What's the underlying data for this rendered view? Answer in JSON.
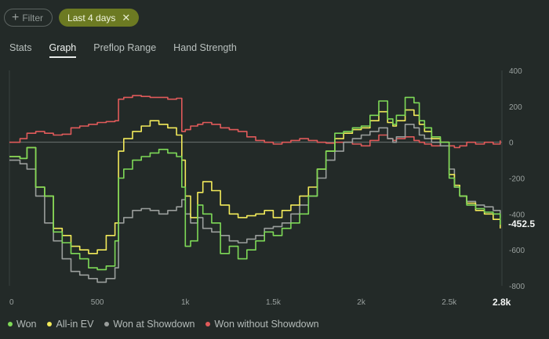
{
  "toolbar": {
    "filter_label": "Filter",
    "active_filter_label": "Last 4 days",
    "accent": "#6c7a22"
  },
  "tabs": [
    {
      "label": "Stats",
      "selected": false
    },
    {
      "label": "Graph",
      "selected": true
    },
    {
      "label": "Preflop Range",
      "selected": false
    },
    {
      "label": "Hand Strength",
      "selected": false
    }
  ],
  "chart_data": {
    "type": "line",
    "xlim": [
      0,
      2800
    ],
    "ylim": [
      -800,
      400
    ],
    "xticks": [
      {
        "value": 0,
        "label": "0"
      },
      {
        "value": 500,
        "label": "500"
      },
      {
        "value": 1000,
        "label": "1k"
      },
      {
        "value": 1500,
        "label": "1.5k"
      },
      {
        "value": 2000,
        "label": "2k"
      },
      {
        "value": 2500,
        "label": "2.5k"
      },
      {
        "value": 2800,
        "label": "2.8k"
      }
    ],
    "yticks": [
      400,
      200,
      0,
      -200,
      -400,
      -600,
      -800
    ],
    "end_value_label": "-452.5",
    "grid": false,
    "legend_position": "bottom-left",
    "series": [
      {
        "name": "Won",
        "color": "#7ed957",
        "x": [
          0,
          60,
          100,
          150,
          200,
          250,
          300,
          350,
          400,
          450,
          500,
          550,
          600,
          620,
          650,
          700,
          750,
          800,
          850,
          900,
          950,
          980,
          1000,
          1030,
          1070,
          1100,
          1150,
          1200,
          1250,
          1300,
          1350,
          1400,
          1450,
          1500,
          1550,
          1600,
          1650,
          1700,
          1750,
          1800,
          1850,
          1900,
          1950,
          2000,
          2050,
          2100,
          2150,
          2180,
          2200,
          2250,
          2300,
          2330,
          2360,
          2400,
          2450,
          2500,
          2530,
          2560,
          2600,
          2650,
          2700,
          2750,
          2790
        ],
        "y": [
          -80,
          -90,
          -30,
          -250,
          -300,
          -500,
          -560,
          -620,
          -650,
          -700,
          -710,
          -690,
          -550,
          -200,
          -150,
          -100,
          -80,
          -60,
          -40,
          -60,
          -80,
          -250,
          -580,
          -550,
          -350,
          -400,
          -450,
          -620,
          -580,
          -650,
          -600,
          -550,
          -500,
          -520,
          -480,
          -450,
          -400,
          -300,
          -150,
          -50,
          50,
          60,
          80,
          90,
          150,
          230,
          130,
          100,
          150,
          250,
          220,
          120,
          80,
          30,
          0,
          -200,
          -250,
          -300,
          -350,
          -370,
          -390,
          -400,
          -460
        ]
      },
      {
        "name": "All-in EV",
        "color": "#f2ea5a",
        "x": [
          0,
          60,
          100,
          150,
          200,
          250,
          300,
          350,
          400,
          450,
          500,
          550,
          600,
          620,
          650,
          700,
          750,
          800,
          850,
          900,
          950,
          980,
          1000,
          1030,
          1070,
          1100,
          1150,
          1200,
          1250,
          1300,
          1350,
          1400,
          1450,
          1500,
          1550,
          1600,
          1650,
          1700,
          1750,
          1800,
          1850,
          1900,
          1950,
          2000,
          2050,
          2100,
          2150,
          2180,
          2200,
          2250,
          2300,
          2330,
          2360,
          2400,
          2450,
          2500,
          2530,
          2560,
          2600,
          2650,
          2700,
          2750,
          2790
        ],
        "y": [
          -80,
          -90,
          -30,
          -250,
          -300,
          -480,
          -520,
          -580,
          -600,
          -620,
          -600,
          -520,
          -450,
          -50,
          20,
          60,
          90,
          120,
          100,
          80,
          40,
          -100,
          -300,
          -420,
          -280,
          -220,
          -270,
          -350,
          -400,
          -420,
          -410,
          -400,
          -380,
          -420,
          -380,
          -350,
          -300,
          -250,
          -150,
          -50,
          20,
          50,
          70,
          80,
          120,
          170,
          110,
          90,
          120,
          180,
          150,
          100,
          60,
          20,
          0,
          -180,
          -240,
          -300,
          -340,
          -380,
          -400,
          -430,
          -480
        ]
      },
      {
        "name": "Won at Showdown",
        "color": "#9a9e9c",
        "x": [
          0,
          60,
          100,
          150,
          200,
          250,
          300,
          350,
          400,
          450,
          500,
          550,
          600,
          620,
          650,
          700,
          750,
          800,
          850,
          900,
          950,
          980,
          1000,
          1030,
          1070,
          1100,
          1150,
          1200,
          1250,
          1300,
          1350,
          1400,
          1450,
          1500,
          1550,
          1600,
          1650,
          1700,
          1750,
          1800,
          1850,
          1900,
          1950,
          2000,
          2050,
          2100,
          2150,
          2180,
          2200,
          2250,
          2300,
          2330,
          2360,
          2400,
          2450,
          2500,
          2530,
          2560,
          2600,
          2650,
          2700,
          2750,
          2790
        ],
        "y": [
          -100,
          -120,
          -150,
          -300,
          -450,
          -550,
          -650,
          -720,
          -740,
          -760,
          -780,
          -760,
          -700,
          -450,
          -420,
          -380,
          -370,
          -380,
          -400,
          -380,
          -360,
          -320,
          -400,
          -450,
          -420,
          -480,
          -500,
          -520,
          -550,
          -560,
          -540,
          -520,
          -480,
          -470,
          -450,
          -400,
          -350,
          -300,
          -200,
          -100,
          -50,
          0,
          20,
          40,
          60,
          80,
          20,
          0,
          30,
          100,
          80,
          40,
          20,
          0,
          -20,
          -150,
          -250,
          -300,
          -330,
          -350,
          -360,
          -380,
          -420
        ]
      },
      {
        "name": "Won without Showdown",
        "color": "#e05a5a",
        "x": [
          0,
          60,
          100,
          150,
          200,
          250,
          300,
          350,
          400,
          450,
          500,
          550,
          600,
          620,
          650,
          700,
          750,
          800,
          850,
          900,
          950,
          980,
          1000,
          1030,
          1070,
          1100,
          1150,
          1200,
          1250,
          1300,
          1350,
          1400,
          1450,
          1500,
          1550,
          1600,
          1650,
          1700,
          1750,
          1800,
          1850,
          1900,
          1950,
          2000,
          2050,
          2100,
          2150,
          2180,
          2200,
          2250,
          2300,
          2330,
          2360,
          2400,
          2450,
          2500,
          2530,
          2560,
          2600,
          2650,
          2700,
          2750,
          2790
        ],
        "y": [
          0,
          20,
          50,
          60,
          50,
          40,
          45,
          80,
          90,
          100,
          110,
          115,
          120,
          240,
          250,
          260,
          255,
          250,
          250,
          240,
          245,
          60,
          70,
          90,
          100,
          110,
          100,
          80,
          70,
          60,
          30,
          10,
          0,
          -10,
          0,
          10,
          20,
          10,
          0,
          -5,
          0,
          0,
          -10,
          -20,
          10,
          40,
          20,
          10,
          20,
          30,
          10,
          0,
          -10,
          -20,
          0,
          -20,
          -30,
          -20,
          0,
          -10,
          0,
          -10,
          10
        ]
      }
    ]
  }
}
